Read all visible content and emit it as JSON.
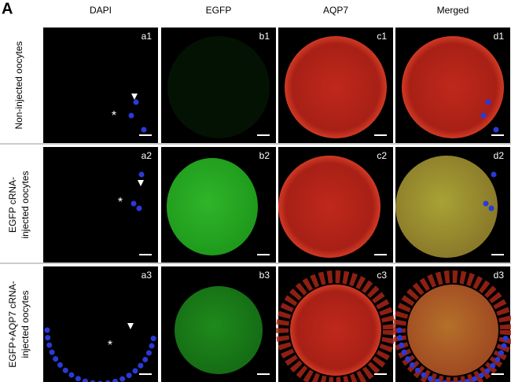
{
  "panel_letter": "A",
  "columns": [
    "DAPI",
    "EGFP",
    "AQP7",
    "Merged"
  ],
  "rows": [
    {
      "label": [
        "Non-injected oocytes"
      ],
      "panels": [
        "a1",
        "b1",
        "c1",
        "d1"
      ]
    },
    {
      "label": [
        "EGFP cRNA-",
        "injected oocytes"
      ],
      "panels": [
        "a2",
        "b2",
        "c2",
        "d2"
      ]
    },
    {
      "label": [
        "EGFP+AQP7 cRNA-",
        "injected oocytes"
      ],
      "panels": [
        "a3",
        "b3",
        "c3",
        "d3"
      ]
    }
  ],
  "asterisk": "*"
}
